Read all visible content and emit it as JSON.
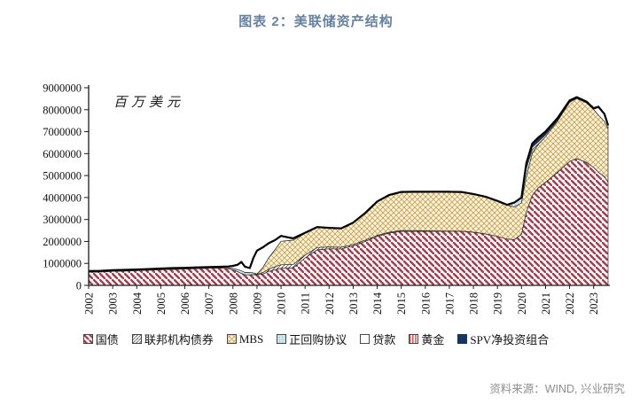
{
  "title": "图表 2：美联储资产结构",
  "source": "资料来源：WIND, 兴业研究",
  "colors": {
    "title": "#68829e",
    "source": "#8f8f8f",
    "axis": "#1a1a1a",
    "total_outline": "#000000"
  },
  "chart_data": {
    "type": "area",
    "stacked": true,
    "title": "图表 2：美联储资产结构",
    "unit_label": "百万美元",
    "ylabel": "百万美元",
    "ylim": [
      0,
      9000000
    ],
    "y_ticks": [
      0,
      1000000,
      2000000,
      3000000,
      4000000,
      5000000,
      6000000,
      7000000,
      8000000,
      9000000
    ],
    "x_ticks": [
      2002,
      2003,
      2004,
      2005,
      2006,
      2007,
      2008,
      2009,
      2010,
      2011,
      2012,
      2013,
      2014,
      2015,
      2016,
      2017,
      2018,
      2019,
      2020,
      2021,
      2022,
      2023
    ],
    "grid": false,
    "legend_position": "bottom",
    "x": [
      2002.0,
      2002.5,
      2003.0,
      2003.5,
      2004.0,
      2004.5,
      2005.0,
      2005.5,
      2006.0,
      2006.5,
      2007.0,
      2007.5,
      2007.8,
      2008.0,
      2008.2,
      2008.35,
      2008.5,
      2008.7,
      2008.85,
      2009.0,
      2009.25,
      2009.5,
      2009.75,
      2010.0,
      2010.5,
      2011.0,
      2011.5,
      2012.0,
      2012.5,
      2013.0,
      2013.5,
      2014.0,
      2014.5,
      2015.0,
      2015.5,
      2016.0,
      2016.5,
      2017.0,
      2017.5,
      2018.0,
      2018.5,
      2019.0,
      2019.4,
      2019.7,
      2020.0,
      2020.2,
      2020.45,
      2020.7,
      2021.0,
      2021.5,
      2022.0,
      2022.3,
      2022.7,
      2023.0,
      2023.2,
      2023.45,
      2023.6
    ],
    "series": [
      {
        "name": "国债",
        "key": "treasury",
        "fill_type": "diag-down",
        "line_color": "#994251",
        "bg_color": "#fcf4f4",
        "line_width": 2.4,
        "tile": 7,
        "values": [
          600000,
          615000,
          640000,
          655000,
          675000,
          695000,
          715000,
          730000,
          745000,
          765000,
          780000,
          790000,
          755000,
          715000,
          620000,
          540000,
          480000,
          476000,
          476000,
          475000,
          520000,
          640000,
          710000,
          776000,
          790000,
          1250000,
          1620000,
          1665000,
          1660000,
          1790000,
          2000000,
          2230000,
          2380000,
          2460000,
          2460000,
          2460000,
          2460000,
          2465000,
          2460000,
          2420000,
          2340000,
          2230000,
          2110000,
          2080000,
          2330000,
          3340000,
          4100000,
          4440000,
          4690000,
          5150000,
          5650000,
          5770000,
          5600000,
          5370000,
          5150000,
          4950000,
          4700000
        ]
      },
      {
        "name": "联邦机构债券",
        "key": "agency",
        "fill_type": "diag-up",
        "line_color": "#3f3f3f",
        "bg_color": "#ffffff",
        "line_width": 0.8,
        "tile": 4,
        "values": [
          0,
          0,
          0,
          0,
          0,
          0,
          0,
          0,
          0,
          0,
          0,
          0,
          0,
          0,
          0,
          0,
          0,
          10000,
          15000,
          35000,
          65000,
          100000,
          140000,
          165000,
          160000,
          130000,
          105000,
          85000,
          75000,
          65000,
          60000,
          45000,
          40000,
          37000,
          35000,
          25000,
          18000,
          10000,
          8000,
          5000,
          3000,
          2000,
          2000,
          2000,
          2000,
          2000,
          2000,
          2000,
          2000,
          2000,
          2000,
          2000,
          2000,
          2000,
          2000,
          2000,
          2000
        ]
      },
      {
        "name": "MBS",
        "key": "mbs",
        "fill_type": "cross-diag",
        "line_color": "#c8a45c",
        "bg_color": "#faf3d9",
        "line_width": 0.9,
        "tile": 6,
        "values": [
          0,
          0,
          0,
          0,
          0,
          0,
          0,
          0,
          0,
          0,
          0,
          0,
          0,
          0,
          0,
          0,
          0,
          0,
          0,
          10000,
          240000,
          540000,
          780000,
          1070000,
          1110000,
          990000,
          910000,
          855000,
          845000,
          985000,
          1220000,
          1530000,
          1680000,
          1740000,
          1750000,
          1760000,
          1770000,
          1770000,
          1770000,
          1720000,
          1680000,
          1600000,
          1540000,
          1490000,
          1420000,
          1620000,
          1920000,
          1980000,
          2080000,
          2330000,
          2690000,
          2740000,
          2710000,
          2640000,
          2600000,
          2520000,
          2440000
        ]
      },
      {
        "name": "正回购协议",
        "key": "repo",
        "fill_type": "grid",
        "line_color": "#8fbdc2",
        "bg_color": "#d8ecee",
        "line_width": 0.7,
        "tile": 3.5,
        "values": [
          35000,
          35000,
          40000,
          40000,
          35000,
          35000,
          40000,
          42000,
          40000,
          42000,
          44000,
          46000,
          50000,
          65000,
          100000,
          120000,
          110000,
          100000,
          80000,
          0,
          0,
          0,
          0,
          0,
          0,
          0,
          0,
          0,
          0,
          0,
          0,
          0,
          0,
          0,
          0,
          0,
          0,
          0,
          0,
          0,
          0,
          0,
          0,
          180000,
          230000,
          380000,
          160000,
          20000,
          0,
          0,
          0,
          0,
          0,
          0,
          0,
          0,
          0
        ]
      },
      {
        "name": "贷款",
        "key": "loans",
        "fill_type": "solid",
        "bg_color": "#ffffff",
        "values": [
          2000,
          2000,
          2000,
          2000,
          2000,
          2000,
          2000,
          2000,
          2000,
          2000,
          2000,
          2000,
          45000,
          95000,
          210000,
          400000,
          250000,
          190000,
          660000,
          1050000,
          900000,
          640000,
          420000,
          230000,
          70000,
          15000,
          10000,
          5000,
          5000,
          5000,
          5000,
          5000,
          5000,
          5000,
          5000,
          5000,
          5000,
          5000,
          5000,
          5000,
          5000,
          5000,
          5000,
          5000,
          5000,
          120000,
          110000,
          100000,
          85000,
          40000,
          25000,
          20000,
          18000,
          15000,
          350000,
          300000,
          120000
        ]
      },
      {
        "name": "黄金",
        "key": "gold",
        "fill_type": "vert",
        "line_color": "#c0504d",
        "bg_color": "#ffffff",
        "line_width": 1.6,
        "tile": 3.5,
        "values": [
          11000,
          11000,
          11000,
          11000,
          11000,
          11000,
          11000,
          11000,
          11000,
          11000,
          11000,
          11000,
          11000,
          11000,
          11000,
          11000,
          11000,
          11000,
          11000,
          11000,
          11000,
          11000,
          11000,
          11000,
          11000,
          11000,
          11000,
          11000,
          11000,
          11000,
          11000,
          11000,
          11000,
          11000,
          11000,
          11000,
          11000,
          11000,
          11000,
          11000,
          11000,
          11000,
          11000,
          11000,
          11000,
          11000,
          11000,
          11000,
          11000,
          11000,
          11000,
          11000,
          11000,
          11000,
          11000,
          11000,
          11000
        ]
      },
      {
        "name": "SPV净投资组合",
        "key": "spv",
        "fill_type": "solid",
        "bg_color": "#17365d",
        "values": [
          0,
          0,
          0,
          0,
          0,
          0,
          0,
          0,
          0,
          0,
          0,
          0,
          0,
          0,
          0,
          0,
          0,
          0,
          0,
          0,
          0,
          0,
          0,
          0,
          0,
          0,
          0,
          0,
          0,
          0,
          0,
          0,
          0,
          0,
          0,
          0,
          0,
          0,
          0,
          0,
          0,
          0,
          0,
          0,
          0,
          90000,
          160000,
          180000,
          140000,
          85000,
          40000,
          30000,
          28000,
          26000,
          25000,
          22000,
          20000
        ]
      }
    ]
  }
}
